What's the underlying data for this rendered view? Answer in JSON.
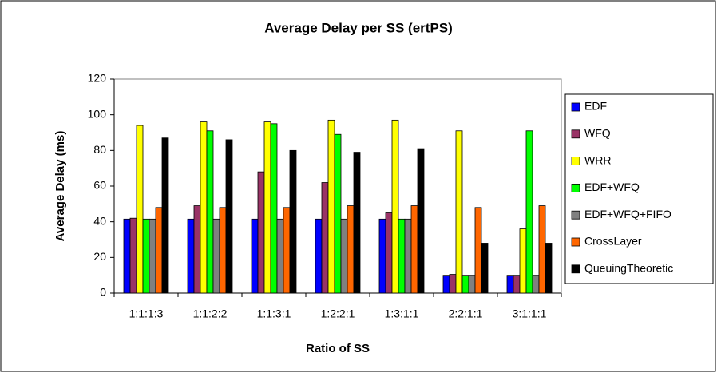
{
  "chart_data": {
    "type": "bar",
    "title": "Average Delay per SS (ertPS)",
    "xlabel": "Ratio of SS",
    "ylabel": "Average Delay (ms)",
    "categories": [
      "1:1:1:3",
      "1:1:2:2",
      "1:1:3:1",
      "1:2:2:1",
      "1:3:1:1",
      "2:2:1:1",
      "3:1:1:1"
    ],
    "series": [
      {
        "name": "EDF",
        "color": "#0000ff",
        "values": [
          41.5,
          41.5,
          41.5,
          41.5,
          41.5,
          10,
          10
        ]
      },
      {
        "name": "WFQ",
        "color": "#993366",
        "values": [
          42,
          49,
          68,
          62,
          45,
          10.5,
          10
        ]
      },
      {
        "name": "WRR",
        "color": "#ffff00",
        "values": [
          94,
          96,
          96,
          97,
          97,
          91,
          36
        ]
      },
      {
        "name": "EDF+WFQ",
        "color": "#00ff00",
        "values": [
          41.5,
          91,
          95,
          89,
          41.5,
          10,
          91
        ]
      },
      {
        "name": "EDF+WFQ+FIFO",
        "color": "#808080",
        "values": [
          41.5,
          41.5,
          41.5,
          41.5,
          41.5,
          10,
          10
        ]
      },
      {
        "name": "CrossLayer",
        "color": "#ff6600",
        "values": [
          48,
          48,
          48,
          49,
          49,
          48,
          49
        ]
      },
      {
        "name": "QueuingTheoretic",
        "color": "#000000",
        "values": [
          87,
          86,
          80,
          79,
          81,
          28,
          28
        ]
      }
    ],
    "ylim": [
      0,
      120
    ],
    "yticks": [
      0,
      20,
      40,
      60,
      80,
      100,
      120
    ],
    "grid": false,
    "legend": "right"
  }
}
